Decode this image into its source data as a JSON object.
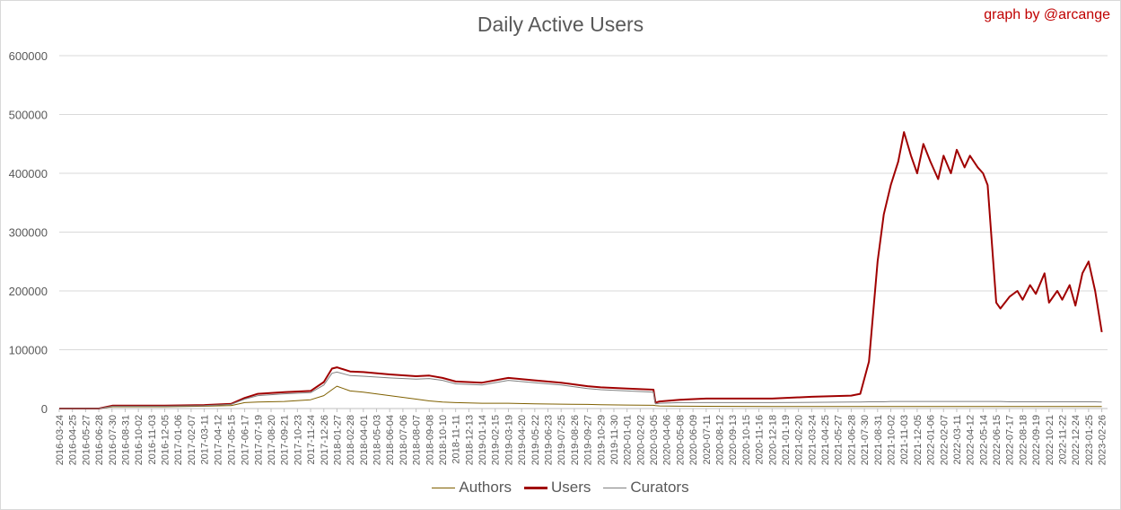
{
  "chart_data": {
    "type": "line",
    "title": "Daily Active Users",
    "credit": "graph by @arcange",
    "ylim": [
      0,
      600000
    ],
    "y_ticks": [
      "0",
      "100000",
      "200000",
      "300000",
      "400000",
      "500000",
      "600000"
    ],
    "x_ticks": [
      "2016-03-24",
      "2016-04-25",
      "2016-05-27",
      "2016-06-28",
      "2016-07-30",
      "2016-08-31",
      "2016-10-02",
      "2016-11-03",
      "2016-12-05",
      "2017-01-06",
      "2017-02-07",
      "2017-03-11",
      "2017-04-12",
      "2017-05-15",
      "2017-06-17",
      "2017-07-19",
      "2017-08-20",
      "2017-09-21",
      "2017-10-23",
      "2017-11-24",
      "2017-12-26",
      "2018-01-27",
      "2018-02-28",
      "2018-04-01",
      "2018-05-03",
      "2018-06-04",
      "2018-07-06",
      "2018-08-07",
      "2018-09-08",
      "2018-10-10",
      "2018-11-11",
      "2018-12-13",
      "2019-01-14",
      "2019-02-15",
      "2019-03-19",
      "2019-04-20",
      "2019-05-22",
      "2019-06-23",
      "2019-07-25",
      "2019-08-26",
      "2019-09-27",
      "2019-10-29",
      "2019-11-30",
      "2020-01-01",
      "2020-02-02",
      "2020-03-05",
      "2020-04-06",
      "2020-05-08",
      "2020-06-09",
      "2020-07-11",
      "2020-08-12",
      "2020-09-13",
      "2020-10-15",
      "2020-11-16",
      "2020-12-18",
      "2021-01-19",
      "2021-02-20",
      "2021-03-24",
      "2021-04-25",
      "2021-05-27",
      "2021-06-28",
      "2021-07-30",
      "2021-08-31",
      "2021-10-02",
      "2021-11-03",
      "2021-12-05",
      "2022-01-06",
      "2022-02-07",
      "2022-03-11",
      "2022-04-12",
      "2022-05-14",
      "2022-06-15",
      "2022-07-17",
      "2022-08-18",
      "2022-09-19",
      "2022-10-21",
      "2022-11-22",
      "2022-12-24",
      "2023-01-25",
      "2023-02-26"
    ],
    "x": [
      "2016-03-24",
      "2016-06-28",
      "2016-08-01",
      "2016-12-05",
      "2017-03-11",
      "2017-05-15",
      "2017-06-17",
      "2017-07-19",
      "2017-09-21",
      "2017-11-24",
      "2017-12-26",
      "2018-01-15",
      "2018-01-27",
      "2018-02-28",
      "2018-04-01",
      "2018-06-04",
      "2018-08-07",
      "2018-09-08",
      "2018-10-10",
      "2018-11-11",
      "2019-01-14",
      "2019-03-19",
      "2019-05-22",
      "2019-07-25",
      "2019-09-27",
      "2019-10-29",
      "2020-01-01",
      "2020-03-05",
      "2020-03-10",
      "2020-03-20",
      "2020-05-08",
      "2020-07-11",
      "2020-12-18",
      "2021-03-24",
      "2021-06-28",
      "2021-07-20",
      "2021-08-10",
      "2021-08-31",
      "2021-09-15",
      "2021-10-02",
      "2021-10-20",
      "2021-11-03",
      "2021-11-20",
      "2021-12-05",
      "2021-12-20",
      "2022-01-06",
      "2022-01-25",
      "2022-02-07",
      "2022-02-25",
      "2022-03-11",
      "2022-03-30",
      "2022-04-12",
      "2022-05-01",
      "2022-05-14",
      "2022-05-25",
      "2022-06-15",
      "2022-06-25",
      "2022-07-17",
      "2022-08-05",
      "2022-08-18",
      "2022-09-05",
      "2022-09-19",
      "2022-10-10",
      "2022-10-21",
      "2022-11-10",
      "2022-11-22",
      "2022-12-10",
      "2022-12-24",
      "2023-01-10",
      "2023-01-25",
      "2023-02-10",
      "2023-02-26"
    ],
    "series": [
      {
        "name": "Authors",
        "color": "#7f6000",
        "width": 1,
        "values": [
          0,
          0,
          3000,
          3000,
          4000,
          5000,
          10000,
          11000,
          12000,
          15000,
          22000,
          32000,
          38000,
          30000,
          28000,
          22000,
          16000,
          13000,
          11000,
          10000,
          9000,
          9000,
          8000,
          7500,
          7000,
          6500,
          6000,
          5500,
          5000,
          4500,
          4000,
          3800,
          3500,
          3500,
          3500,
          3500,
          3500,
          3500,
          3500,
          3500,
          3500,
          3500,
          3500,
          3500,
          3500,
          3500,
          3500,
          3500,
          3500,
          3500,
          3500,
          3500,
          3500,
          3500,
          3500,
          3500,
          3500,
          3500,
          3500,
          3500,
          3500,
          3500,
          3500,
          3500,
          3500,
          3500,
          3500,
          3500,
          3500,
          3500,
          3500,
          3500
        ]
      },
      {
        "name": "Users",
        "color": "#a00000",
        "width": 2,
        "values": [
          0,
          0,
          5000,
          5000,
          6000,
          8000,
          18000,
          25000,
          28000,
          30000,
          45000,
          68000,
          70000,
          63000,
          62000,
          58000,
          55000,
          56000,
          52000,
          46000,
          44000,
          52000,
          48000,
          44000,
          38000,
          36000,
          34000,
          32000,
          10000,
          12000,
          15000,
          17000,
          17000,
          20000,
          22000,
          25000,
          80000,
          250000,
          330000,
          380000,
          420000,
          470000,
          430000,
          400000,
          450000,
          420000,
          390000,
          430000,
          400000,
          440000,
          410000,
          430000,
          410000,
          400000,
          380000,
          180000,
          170000,
          190000,
          200000,
          185000,
          210000,
          195000,
          230000,
          180000,
          200000,
          185000,
          210000,
          175000,
          230000,
          250000,
          200000,
          130000
        ]
      },
      {
        "name": "Curators",
        "color": "#808080",
        "width": 1,
        "values": [
          0,
          0,
          4000,
          4000,
          5000,
          7000,
          16000,
          22000,
          25000,
          27000,
          40000,
          60000,
          62000,
          56000,
          55000,
          52000,
          50000,
          51000,
          48000,
          42000,
          40000,
          48000,
          44000,
          40000,
          34000,
          32000,
          30000,
          28000,
          8000,
          9000,
          10000,
          10000,
          10000,
          10500,
          11000,
          11000,
          11500,
          11500,
          11500,
          12000,
          12000,
          12000,
          12000,
          12000,
          12000,
          12000,
          12000,
          12000,
          12000,
          12000,
          12000,
          12000,
          12000,
          12000,
          12000,
          12000,
          12000,
          11500,
          11500,
          11500,
          11500,
          11500,
          11500,
          11500,
          11500,
          11500,
          11500,
          11500,
          11500,
          11500,
          11500,
          11000
        ]
      }
    ],
    "legend_position": "bottom",
    "grid": "horizontal"
  }
}
